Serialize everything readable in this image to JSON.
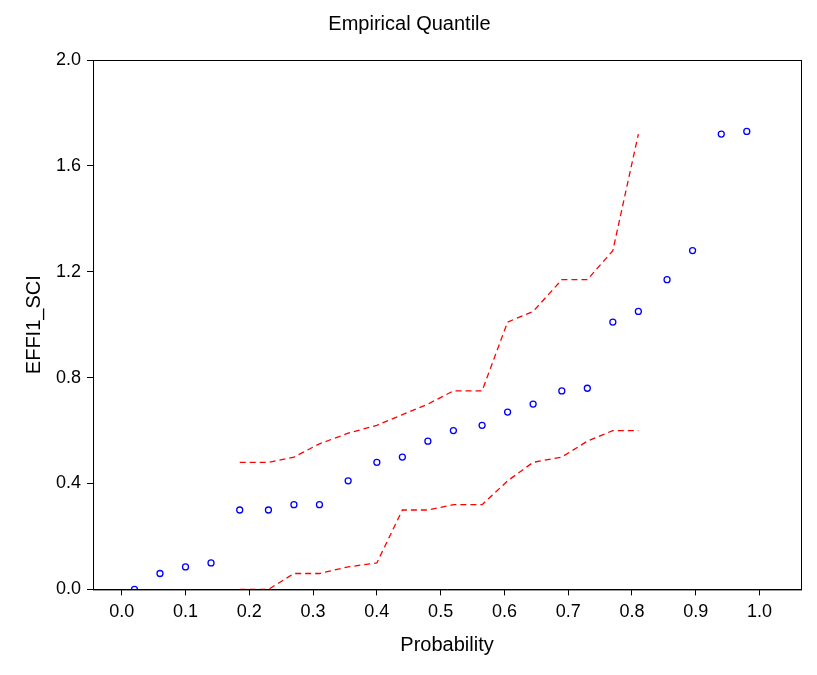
{
  "chart_data": {
    "type": "scatter",
    "title": "Empirical Quantile",
    "x_label": "Probability",
    "y_label": "EFFI1_SCI",
    "xlim": [
      -0.045,
      1.065
    ],
    "xticks": [
      {
        "value": 0,
        "label": "0.0"
      },
      0.1,
      0.2,
      0.3,
      0.4,
      0.5,
      0.6,
      0.7,
      0.8,
      0.9,
      {
        "value": 1,
        "label": "1.0"
      }
    ],
    "ylim": [
      0,
      2
    ],
    "yticks": [
      {
        "value": 0,
        "label": "0.0"
      },
      0.4,
      0.8,
      1.2,
      1.6,
      {
        "value": 2,
        "label": "2.0"
      }
    ],
    "grid": false,
    "series": [
      {
        "type": "scatter",
        "color": "#0000ff",
        "marker": "circle",
        "x": [
          0.02,
          0.06,
          0.1,
          0.14,
          0.185,
          0.23,
          0.27,
          0.31,
          0.355,
          0.4,
          0.44,
          0.48,
          0.52,
          0.565,
          0.605,
          0.645,
          0.69,
          0.73,
          0.77,
          0.81,
          0.855,
          0.895,
          0.94,
          0.98
        ],
        "values": [
          0.0,
          0.06,
          0.085,
          0.1,
          0.3,
          0.3,
          0.32,
          0.32,
          0.41,
          0.48,
          0.5,
          0.56,
          0.6,
          0.62,
          0.67,
          0.7,
          0.75,
          0.76,
          1.01,
          1.05,
          1.17,
          1.28,
          1.72,
          1.73
        ]
      },
      {
        "type": "line",
        "color": "#ff0000",
        "line_style": "dashed",
        "x": [
          0.185,
          0.23,
          0.27,
          0.31,
          0.355,
          0.4,
          0.44,
          0.48,
          0.52,
          0.565,
          0.605,
          0.645,
          0.69,
          0.73,
          0.77,
          0.81
        ],
        "values": [
          0.48,
          0.48,
          0.5,
          0.55,
          0.59,
          0.62,
          0.66,
          0.7,
          0.75,
          0.75,
          1.01,
          1.05,
          1.17,
          1.17,
          1.28,
          1.72
        ]
      },
      {
        "type": "line",
        "color": "#ff0000",
        "line_style": "dashed",
        "x": [
          0.185,
          0.23,
          0.27,
          0.31,
          0.355,
          0.4,
          0.44,
          0.48,
          0.52,
          0.565,
          0.605,
          0.645,
          0.69,
          0.73,
          0.77,
          0.81
        ],
        "values": [
          0.0,
          0.0,
          0.06,
          0.06,
          0.085,
          0.1,
          0.3,
          0.3,
          0.32,
          0.32,
          0.41,
          0.48,
          0.5,
          0.56,
          0.6,
          0.6
        ]
      }
    ]
  }
}
